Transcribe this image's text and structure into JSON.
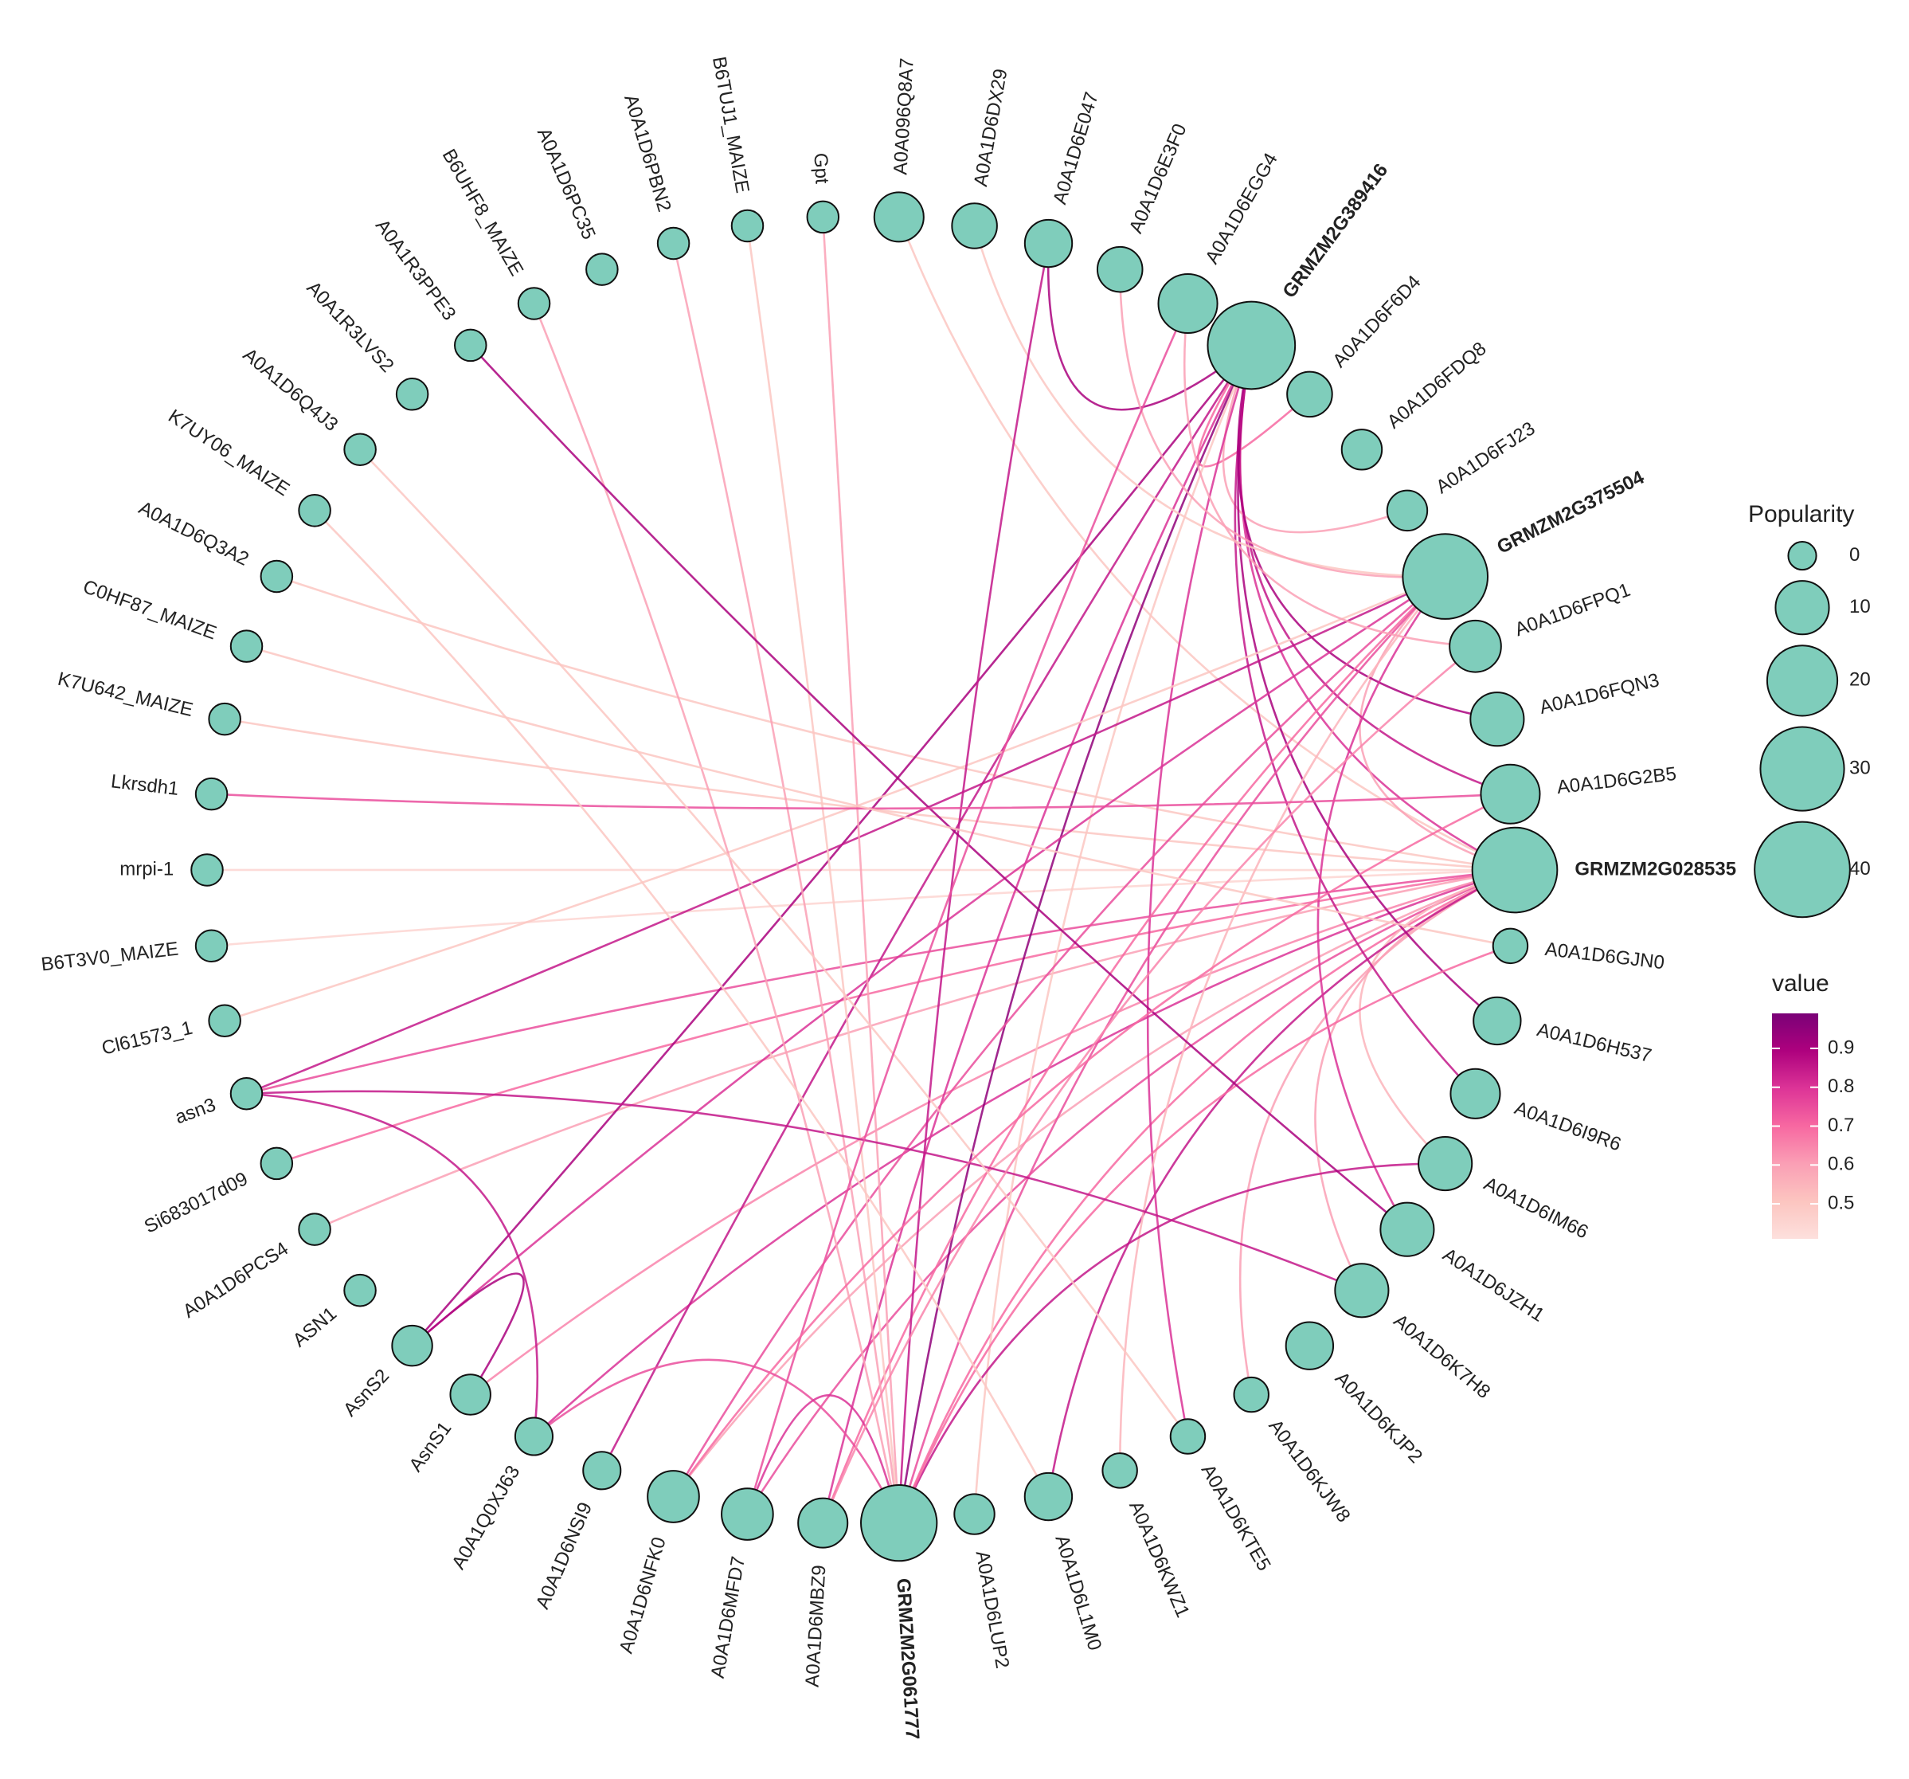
{
  "network": {
    "nodes": [
      {
        "label": "Gpt",
        "popularity": 1
      },
      {
        "label": "A0A096Q8A7",
        "popularity": 8
      },
      {
        "label": "A0A1D6DX29",
        "popularity": 6
      },
      {
        "label": "A0A1D6E047",
        "popularity": 7
      },
      {
        "label": "A0A1D6E3F0",
        "popularity": 6
      },
      {
        "label": "A0A1D6EGG4",
        "popularity": 13
      },
      {
        "label": "GRMZM2G389416",
        "popularity": 33,
        "bold": true
      },
      {
        "label": "A0A1D6F6D4",
        "popularity": 6
      },
      {
        "label": "A0A1D6FDQ8",
        "popularity": 4
      },
      {
        "label": "A0A1D6FJ23",
        "popularity": 4
      },
      {
        "label": "GRMZM2G375504",
        "popularity": 31,
        "bold": true
      },
      {
        "label": "A0A1D6FPQ1",
        "popularity": 9
      },
      {
        "label": "A0A1D6FQN3",
        "popularity": 10
      },
      {
        "label": "A0A1D6G2B5",
        "popularity": 13
      },
      {
        "label": "GRMZM2G028535",
        "popularity": 31,
        "bold": true
      },
      {
        "label": "A0A1D6GJN0",
        "popularity": 2
      },
      {
        "label": "A0A1D6H537",
        "popularity": 7
      },
      {
        "label": "A0A1D6I9R6",
        "popularity": 8
      },
      {
        "label": "A0A1D6IM66",
        "popularity": 10
      },
      {
        "label": "A0A1D6JZH1",
        "popularity": 10
      },
      {
        "label": "A0A1D6K7H8",
        "popularity": 10
      },
      {
        "label": "A0A1D6KJP2",
        "popularity": 7
      },
      {
        "label": "A0A1D6KJW8",
        "popularity": 2
      },
      {
        "label": "A0A1D6KTE5",
        "popularity": 2
      },
      {
        "label": "A0A1D6KWZ1",
        "popularity": 2
      },
      {
        "label": "A0A1D6L1M0",
        "popularity": 7
      },
      {
        "label": "A0A1D6LUP2",
        "popularity": 4
      },
      {
        "label": "GRMZM2G061777",
        "popularity": 24,
        "bold": true
      },
      {
        "label": "A0A1D6MBZ9",
        "popularity": 8
      },
      {
        "label": "A0A1D6MFD7",
        "popularity": 9
      },
      {
        "label": "A0A1D6NFK0",
        "popularity": 9
      },
      {
        "label": "A0A1D6NSI9",
        "popularity": 3
      },
      {
        "label": "A0A1Q0XJ63",
        "popularity": 3
      },
      {
        "label": "AsnS1",
        "popularity": 4
      },
      {
        "label": "AsnS2",
        "popularity": 4
      },
      {
        "label": "ASN1",
        "popularity": 1
      },
      {
        "label": "A0A1D6PCS4",
        "popularity": 1
      },
      {
        "label": "Si683017d09",
        "popularity": 1
      },
      {
        "label": "asn3",
        "popularity": 1
      },
      {
        "label": "Cl61573_1",
        "popularity": 1
      },
      {
        "label": "B6T3V0_MAIZE",
        "popularity": 1
      },
      {
        "label": "mrpi-1",
        "popularity": 1
      },
      {
        "label": "Lkrsdh1",
        "popularity": 1
      },
      {
        "label": "K7U642_MAIZE",
        "popularity": 1
      },
      {
        "label": "C0HF87_MAIZE",
        "popularity": 1
      },
      {
        "label": "A0A1D6Q3A2",
        "popularity": 1
      },
      {
        "label": "K7UY06_MAIZE",
        "popularity": 1
      },
      {
        "label": "A0A1D6Q4J3",
        "popularity": 1
      },
      {
        "label": "A0A1R3LVS2",
        "popularity": 1
      },
      {
        "label": "A0A1R3PPE3",
        "popularity": 1
      },
      {
        "label": "B6UHF8_MAIZE",
        "popularity": 1
      },
      {
        "label": "A0A1D6PC35",
        "popularity": 1
      },
      {
        "label": "A0A1D6PBN2",
        "popularity": 1
      },
      {
        "label": "B6TUJ1_MAIZE",
        "popularity": 1
      }
    ],
    "edges": [
      {
        "source": "GRMZM2G028535",
        "target": "mrpi-1",
        "value": 0.45
      },
      {
        "source": "GRMZM2G028535",
        "target": "B6T3V0_MAIZE",
        "value": 0.45
      },
      {
        "source": "GRMZM2G028535",
        "target": "K7U642_MAIZE",
        "value": 0.5
      },
      {
        "source": "GRMZM2G028535",
        "target": "asn3",
        "value": 0.75
      },
      {
        "source": "GRMZM2G028535",
        "target": "Si683017d09",
        "value": 0.7
      },
      {
        "source": "GRMZM2G028535",
        "target": "A0A1Q0XJ63",
        "value": 0.8
      },
      {
        "source": "GRMZM2G028535",
        "target": "AsnS1",
        "value": 0.65
      },
      {
        "source": "GRMZM2G028535",
        "target": "GRMZM2G061777",
        "value": 0.7
      },
      {
        "source": "GRMZM2G028535",
        "target": "A0A1D6MFD7",
        "value": 0.75
      },
      {
        "source": "GRMZM2G028535",
        "target": "A0A1D6NFK0",
        "value": 0.6
      },
      {
        "source": "GRMZM2G028535",
        "target": "A0A096Q8A7",
        "value": 0.5
      },
      {
        "source": "GRMZM2G028535",
        "target": "GRMZM2G389416",
        "value": 0.8
      },
      {
        "source": "GRMZM2G028535",
        "target": "GRMZM2G375504",
        "value": 0.6
      },
      {
        "source": "GRMZM2G028535",
        "target": "A0A1D6IM66",
        "value": 0.55
      },
      {
        "source": "GRMZM2G028535",
        "target": "A0A1D6K7H8",
        "value": 0.6
      },
      {
        "source": "GRMZM2G028535",
        "target": "A0A1D6KJW8",
        "value": 0.6
      },
      {
        "source": "GRMZM2G028535",
        "target": "A0A1D6L1M0",
        "value": 0.85
      },
      {
        "source": "GRMZM2G028535",
        "target": "A0A1D6PCS4",
        "value": 0.6
      },
      {
        "source": "GRMZM2G028535",
        "target": "A0A1D6Q3A2",
        "value": 0.5
      },
      {
        "source": "GRMZM2G389416",
        "target": "AsnS2",
        "value": 0.9
      },
      {
        "source": "GRMZM2G389416",
        "target": "GRMZM2G061777",
        "value": 0.95
      },
      {
        "source": "GRMZM2G389416",
        "target": "A0A1D6MBZ9",
        "value": 0.8
      },
      {
        "source": "GRMZM2G389416",
        "target": "A0A1D6NSI9",
        "value": 0.85
      },
      {
        "source": "GRMZM2G389416",
        "target": "A0A1D6F6D4",
        "value": 0.7
      },
      {
        "source": "GRMZM2G389416",
        "target": "A0A1D6FJ23",
        "value": 0.6
      },
      {
        "source": "GRMZM2G389416",
        "target": "A0A1D6G2B5",
        "value": 0.85
      },
      {
        "source": "GRMZM2G389416",
        "target": "A0A1D6H537",
        "value": 0.9
      },
      {
        "source": "GRMZM2G389416",
        "target": "A0A1D6I9R6",
        "value": 0.85
      },
      {
        "source": "GRMZM2G389416",
        "target": "A0A1D6E047",
        "value": 0.9
      },
      {
        "source": "GRMZM2G389416",
        "target": "A0A1D6LUP2",
        "value": 0.5
      },
      {
        "source": "GRMZM2G389416",
        "target": "A0A1D6KTE5",
        "value": 0.8
      },
      {
        "source": "GRMZM2G389416",
        "target": "A0A1D6FQN3",
        "value": 0.9
      },
      {
        "source": "GRMZM2G375504",
        "target": "asn3",
        "value": 0.85
      },
      {
        "source": "GRMZM2G375504",
        "target": "AsnS2",
        "value": 0.8
      },
      {
        "source": "GRMZM2G375504",
        "target": "A0A1D6NFK0",
        "value": 0.75
      },
      {
        "source": "GRMZM2G375504",
        "target": "A0A1D6MBZ9",
        "value": 0.7
      },
      {
        "source": "GRMZM2G375504",
        "target": "GRMZM2G061777",
        "value": 0.75
      },
      {
        "source": "GRMZM2G375504",
        "target": "A0A1D6DX29",
        "value": 0.5
      },
      {
        "source": "GRMZM2G375504",
        "target": "A0A1D6KWZ1",
        "value": 0.55
      },
      {
        "source": "GRMZM2G375504",
        "target": "A0A1D6JZH1",
        "value": 0.8
      },
      {
        "source": "GRMZM2G375504",
        "target": "A0A1D6E3F0",
        "value": 0.6
      },
      {
        "source": "GRMZM2G375504",
        "target": "Cl61573_1",
        "value": 0.5
      },
      {
        "source": "GRMZM2G061777",
        "target": "B6UHF8_MAIZE",
        "value": 0.6
      },
      {
        "source": "GRMZM2G061777",
        "target": "A0A1D6PBN2",
        "value": 0.6
      },
      {
        "source": "GRMZM2G061777",
        "target": "Gpt",
        "value": 0.6
      },
      {
        "source": "GRMZM2G061777",
        "target": "A0A1D6E047",
        "value": 0.85
      },
      {
        "source": "GRMZM2G061777",
        "target": "A0A1D6IM66",
        "value": 0.85
      },
      {
        "source": "GRMZM2G061777",
        "target": "A0A1D6GJN0",
        "value": 0.7
      },
      {
        "source": "GRMZM2G061777",
        "target": "A0A1Q0XJ63",
        "value": 0.75
      },
      {
        "source": "GRMZM2G061777",
        "target": "B6TUJ1_MAIZE",
        "value": 0.5
      },
      {
        "source": "GRMZM2G061777",
        "target": "A0A1D6MFD7",
        "value": 0.8
      },
      {
        "source": "A0A1R3PPE3",
        "target": "A0A1D6JZH1",
        "value": 0.9
      },
      {
        "source": "asn3",
        "target": "A0A1D6K7H8",
        "value": 0.85
      },
      {
        "source": "AsnS1",
        "target": "AsnS2",
        "value": 0.9
      },
      {
        "source": "asn3",
        "target": "A0A1Q0XJ63",
        "value": 0.85
      },
      {
        "source": "Lkrsdh1",
        "target": "A0A1D6G2B5",
        "value": 0.75
      },
      {
        "source": "C0HF87_MAIZE",
        "target": "A0A1D6GJN0",
        "value": 0.5
      },
      {
        "source": "K7UY06_MAIZE",
        "target": "A0A1D6L1M0",
        "value": 0.5
      },
      {
        "source": "A0A1D6Q4J3",
        "target": "A0A1D6KTE5",
        "value": 0.5
      },
      {
        "source": "A0A1D6EGG4",
        "target": "A0A1D6MFD7",
        "value": 0.75
      },
      {
        "source": "A0A1D6EGG4",
        "target": "A0A1D6FPQ1",
        "value": 0.6
      },
      {
        "source": "A0A1D6G2B5",
        "target": "A0A1D6NFK0",
        "value": 0.7
      },
      {
        "source": "A0A1D6FPQ1",
        "target": "A0A1D6MBZ9",
        "value": 0.65
      }
    ],
    "size_legend": {
      "title": "Popularity",
      "sizes": [
        0,
        10,
        20,
        30,
        40
      ]
    },
    "color_legend": {
      "title": "value",
      "lim": [
        0.41,
        0.99
      ],
      "ticks": [
        0.5,
        0.6,
        0.7,
        0.8,
        0.9
      ],
      "colors": [
        "#fde0dd",
        "#fcc5c0",
        "#fa9fb5",
        "#f768a1",
        "#dd3497",
        "#ae017e",
        "#7a0177"
      ]
    },
    "node_color": "#7fcdbb"
  }
}
